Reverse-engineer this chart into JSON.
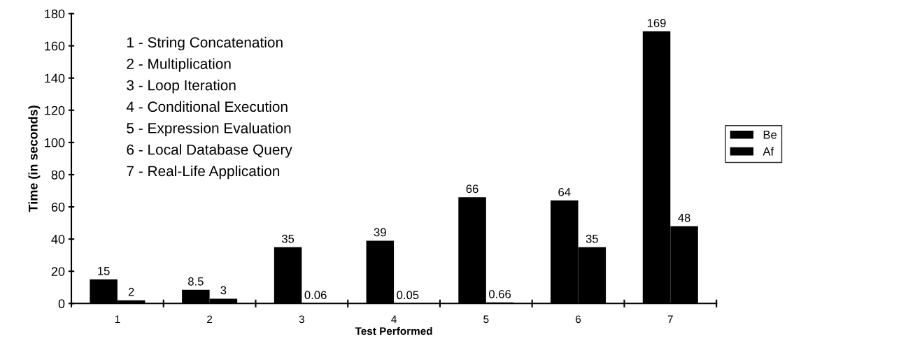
{
  "chart_data": {
    "type": "bar",
    "xlabel": "Test Performed",
    "ylabel": "Time (in seconds)",
    "categories": [
      "1",
      "2",
      "3",
      "4",
      "5",
      "6",
      "7"
    ],
    "series": [
      {
        "name": "Be",
        "color": "#000000",
        "values": [
          15,
          8.5,
          35,
          39,
          66,
          64,
          169
        ]
      },
      {
        "name": "Af",
        "color": "#000000",
        "values": [
          2,
          3,
          0.06,
          0.05,
          0.66,
          35,
          48
        ]
      }
    ],
    "data_labels": true,
    "ylim": [
      0,
      180
    ],
    "yticks": [
      0,
      20,
      40,
      60,
      80,
      100,
      120,
      140,
      160,
      180
    ],
    "grid": false,
    "legend": "right",
    "annotations": [
      "1 - String Concatenation",
      "2 - Multiplication",
      "3 - Loop Iteration",
      "4 - Conditional Execution",
      "5 - Expression Evaluation",
      "6 - Local Database Query",
      "7 - Real-Life Application"
    ]
  }
}
